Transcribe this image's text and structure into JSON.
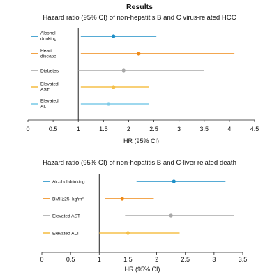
{
  "header": {
    "title": "Results"
  },
  "chart_data": [
    {
      "type": "forest",
      "title": "Hazard ratio (95% CI) of non-hepatitis B and C virus-related HCC",
      "xlabel": "HR (95% CI)",
      "xlim": [
        0,
        4.5
      ],
      "xticks": [
        0,
        0.5,
        1,
        1.5,
        2,
        2.5,
        3,
        3.5,
        4,
        4.5
      ],
      "xtick_labels": [
        "0",
        "0.5",
        "1",
        "1.5",
        "2",
        "2.5",
        "3",
        "3.5",
        "4",
        "4.5"
      ],
      "reference_line": 1,
      "legend_placement": "left",
      "series": [
        {
          "name": "Alcohol drinking",
          "hr": 1.7,
          "ci": [
            1.05,
            2.55
          ],
          "color": "#1f8fc7"
        },
        {
          "name": "Heart disease",
          "hr": 2.2,
          "ci": [
            1.05,
            4.1
          ],
          "color": "#ef8a17"
        },
        {
          "name": "Diabetes",
          "hr": 1.9,
          "ci": [
            1.0,
            3.5
          ],
          "color": "#a8a8a8"
        },
        {
          "name": "Elevated AST",
          "hr": 1.7,
          "ci": [
            1.05,
            2.4
          ],
          "color": "#f5c04a"
        },
        {
          "name": "Elevated ALT",
          "hr": 1.6,
          "ci": [
            1.05,
            2.4
          ],
          "color": "#7fcbe8"
        }
      ]
    },
    {
      "type": "forest",
      "title": "Hazard ratio (95% CI) of non-hepatitis B and C-liver related death",
      "xlabel": "HR (95% CI)",
      "xlim": [
        0,
        3.5
      ],
      "xticks": [
        0,
        0.5,
        1,
        1.5,
        2,
        2.5,
        3,
        3.5
      ],
      "xtick_labels": [
        "0",
        "0.5",
        "1",
        "1.5",
        "2",
        "2.5",
        "3",
        "3.5"
      ],
      "reference_line": 1,
      "legend_placement": "left",
      "series": [
        {
          "name": "Alcohol drinking",
          "hr": 2.3,
          "ci": [
            1.65,
            3.2
          ],
          "color": "#1f8fc7"
        },
        {
          "name": "BMI ≥25, kg/m²",
          "hr": 1.4,
          "ci": [
            1.1,
            1.95
          ],
          "color": "#ef8a17"
        },
        {
          "name": "Elevated AST",
          "hr": 2.25,
          "ci": [
            1.45,
            3.35
          ],
          "color": "#a8a8a8"
        },
        {
          "name": "Elevated ALT",
          "hr": 1.5,
          "ci": [
            1.0,
            2.4
          ],
          "color": "#f5c04a"
        }
      ]
    }
  ]
}
